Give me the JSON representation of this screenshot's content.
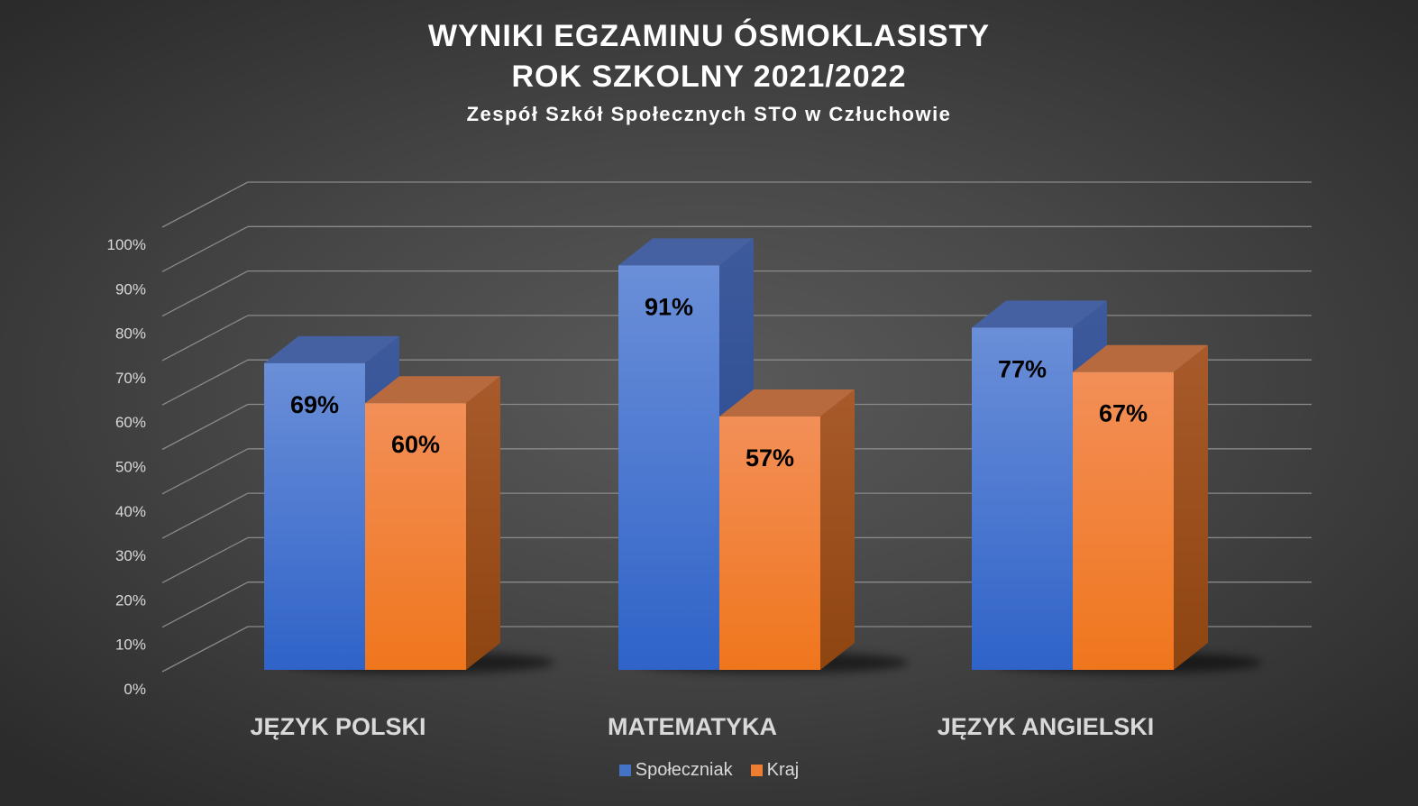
{
  "chart_data": {
    "type": "bar",
    "title_lines": [
      "WYNIKI EGZAMINU ÓSMOKLASISTY",
      "ROK SZKOLNY 2021/2022"
    ],
    "subtitle": "Zespół Szkół Społecznych STO w Człuchowie",
    "categories": [
      "JĘZYK POLSKI",
      "MATEMATYKA",
      "JĘZYK ANGIELSKI"
    ],
    "series": [
      {
        "name": "Społeczniak",
        "values": [
          69,
          91,
          77
        ],
        "labels": [
          "69%",
          "91%",
          "77%"
        ],
        "color": "#4472c4"
      },
      {
        "name": "Kraj",
        "values": [
          60,
          57,
          67
        ],
        "labels": [
          "60%",
          "57%",
          "67%"
        ],
        "color": "#ed7d31"
      }
    ],
    "ylim": [
      0,
      100
    ],
    "y_ticks": [
      "0%",
      "10%",
      "20%",
      "30%",
      "40%",
      "50%",
      "60%",
      "70%",
      "80%",
      "90%",
      "100%"
    ],
    "xlabel": "",
    "ylabel": "",
    "grid": true,
    "legend_position": "bottom",
    "style": "3d-clustered-column"
  }
}
